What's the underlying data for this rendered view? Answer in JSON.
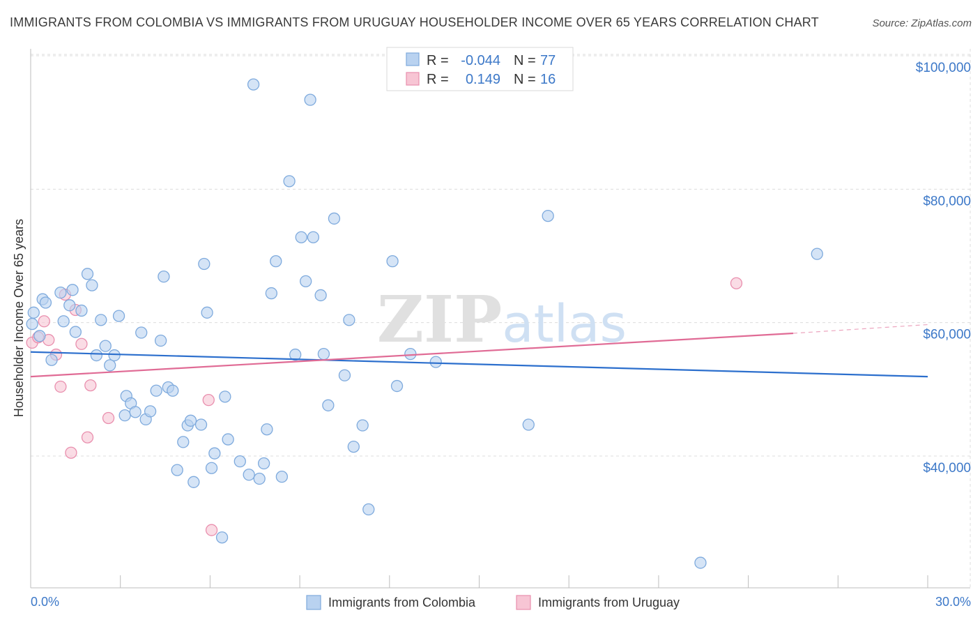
{
  "chart_data": {
    "type": "scatter",
    "title": "IMMIGRANTS FROM COLOMBIA VS IMMIGRANTS FROM URUGUAY HOUSEHOLDER INCOME OVER 65 YEARS CORRELATION CHART",
    "source": "Source: ZipAtlas.com",
    "ylabel": "Householder Income Over 65 years",
    "xlabel": "",
    "xlim": [
      0,
      30
    ],
    "ylim": [
      22000,
      103000
    ],
    "x_tick_labels": [
      "0.0%",
      "30.0%"
    ],
    "y_ticks": [
      {
        "value": 40000,
        "label": "$40,000"
      },
      {
        "value": 60000,
        "label": "$60,000"
      },
      {
        "value": 80000,
        "label": "$80,000"
      },
      {
        "value": 100000,
        "label": "$100,000"
      }
    ],
    "legend": [
      {
        "series": "Immigrants from Colombia",
        "r_label": "R =",
        "r_value": "-0.044",
        "n_label": "N =",
        "n_value": "77"
      },
      {
        "series": "Immigrants from Uruguay",
        "r_label": "R =",
        "r_value": "0.149",
        "n_label": "N =",
        "n_value": "16"
      }
    ],
    "watermark": "ZIPatlas",
    "colors": {
      "colombia_fill": "#b9d2f0",
      "colombia_stroke": "#7eaadd",
      "colombia_line": "#2c6fcd",
      "uruguay_fill": "#f7c5d4",
      "uruguay_stroke": "#e98fae",
      "uruguay_line": "#e06b95",
      "tick_text": "#3c78c8",
      "grid": "#dcdcdc"
    },
    "series": [
      {
        "name": "Immigrants from Colombia",
        "trend": {
          "x0": 0,
          "y0": 55600,
          "x1": 30,
          "y1": 51900
        },
        "points": [
          [
            0.05,
            59800
          ],
          [
            0.1,
            61500
          ],
          [
            0.4,
            63500
          ],
          [
            0.5,
            63000
          ],
          [
            0.7,
            54400
          ],
          [
            1.0,
            64500
          ],
          [
            1.1,
            60200
          ],
          [
            1.3,
            62600
          ],
          [
            1.4,
            64900
          ],
          [
            1.5,
            58600
          ],
          [
            1.7,
            61800
          ],
          [
            1.9,
            67300
          ],
          [
            2.05,
            65600
          ],
          [
            2.2,
            55100
          ],
          [
            2.35,
            60400
          ],
          [
            2.5,
            56500
          ],
          [
            2.65,
            53600
          ],
          [
            2.8,
            55100
          ],
          [
            2.95,
            61000
          ],
          [
            3.15,
            46100
          ],
          [
            3.2,
            49000
          ],
          [
            3.35,
            47900
          ],
          [
            3.5,
            46600
          ],
          [
            3.7,
            58500
          ],
          [
            3.85,
            45500
          ],
          [
            4.0,
            46700
          ],
          [
            4.2,
            49800
          ],
          [
            4.35,
            57300
          ],
          [
            4.45,
            66900
          ],
          [
            4.6,
            50300
          ],
          [
            4.75,
            49800
          ],
          [
            4.9,
            37900
          ],
          [
            5.1,
            42100
          ],
          [
            5.25,
            44600
          ],
          [
            5.35,
            45300
          ],
          [
            5.45,
            36100
          ],
          [
            5.7,
            44700
          ],
          [
            5.8,
            68800
          ],
          [
            5.9,
            61500
          ],
          [
            6.05,
            38200
          ],
          [
            6.15,
            40400
          ],
          [
            6.4,
            27800
          ],
          [
            6.5,
            48900
          ],
          [
            6.6,
            42500
          ],
          [
            7.0,
            39200
          ],
          [
            7.3,
            37200
          ],
          [
            7.45,
            95700
          ],
          [
            7.65,
            36600
          ],
          [
            7.8,
            38900
          ],
          [
            7.9,
            44000
          ],
          [
            8.05,
            64400
          ],
          [
            8.2,
            69200
          ],
          [
            8.4,
            36900
          ],
          [
            8.65,
            81200
          ],
          [
            8.85,
            55200
          ],
          [
            9.05,
            72800
          ],
          [
            9.2,
            66200
          ],
          [
            9.45,
            72800
          ],
          [
            9.7,
            64100
          ],
          [
            9.8,
            55300
          ],
          [
            9.95,
            47600
          ],
          [
            10.15,
            75600
          ],
          [
            10.65,
            60400
          ],
          [
            10.5,
            52100
          ],
          [
            10.8,
            41400
          ],
          [
            11.1,
            44600
          ],
          [
            11.3,
            32000
          ],
          [
            12.1,
            69200
          ],
          [
            12.25,
            50500
          ],
          [
            12.7,
            55300
          ],
          [
            13.55,
            54100
          ],
          [
            16.65,
            44700
          ],
          [
            17.3,
            76000
          ],
          [
            22.4,
            24000
          ],
          [
            26.3,
            70300
          ],
          [
            0.3,
            58000
          ],
          [
            9.35,
            93400
          ]
        ]
      },
      {
        "name": "Immigrants from Uruguay",
        "trend": {
          "x0": 0,
          "y0": 51900,
          "x1": 25.5,
          "y1": 58400,
          "x1_dashed": 30,
          "y1_dashed": 59700
        },
        "points": [
          [
            0.05,
            57000
          ],
          [
            0.25,
            57800
          ],
          [
            0.45,
            60200
          ],
          [
            0.6,
            57400
          ],
          [
            0.85,
            55200
          ],
          [
            1.0,
            50400
          ],
          [
            1.15,
            64200
          ],
          [
            1.35,
            40500
          ],
          [
            1.5,
            61900
          ],
          [
            1.7,
            56800
          ],
          [
            1.9,
            42800
          ],
          [
            2.0,
            50600
          ],
          [
            2.6,
            45700
          ],
          [
            5.95,
            48400
          ],
          [
            6.05,
            28900
          ],
          [
            23.6,
            65900
          ]
        ]
      }
    ]
  }
}
